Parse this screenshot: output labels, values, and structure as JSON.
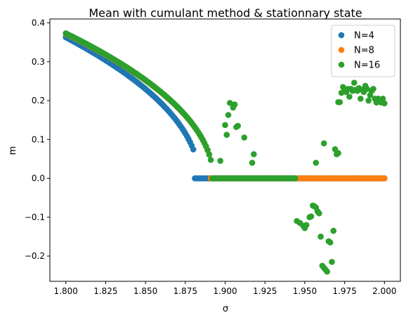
{
  "chart_data": {
    "type": "scatter",
    "title": "Mean with cumulant method & stationnary state",
    "xlabel": "σ",
    "ylabel": "m",
    "xlim": [
      1.79,
      2.01
    ],
    "ylim": [
      -0.265,
      0.41
    ],
    "xticks": [
      1.8,
      1.825,
      1.85,
      1.875,
      1.9,
      1.925,
      1.95,
      1.975,
      2.0
    ],
    "xtick_labels": [
      "1.800",
      "1.825",
      "1.850",
      "1.875",
      "1.900",
      "1.925",
      "1.950",
      "1.975",
      "2.000"
    ],
    "yticks": [
      -0.2,
      -0.1,
      0.0,
      0.1,
      0.2,
      0.3,
      0.4
    ],
    "ytick_labels": [
      "−0.2",
      "−0.1",
      "0.0",
      "0.1",
      "0.2",
      "0.3",
      "0.4"
    ],
    "grid": false,
    "legend": "top-right",
    "series": [
      {
        "name": "N=4",
        "color": "#1f77b4",
        "model": {
          "x_start": 1.8,
          "x_end": 2.0,
          "step": 0.001,
          "m0": 0.363,
          "sigma_c": 1.8835,
          "beta": 0.5,
          "cutoff": 1.881
        },
        "points": []
      },
      {
        "name": "N=8",
        "color": "#ff7f0e",
        "model": {
          "x_start": 1.8,
          "x_end": 2.0,
          "step": 0.001,
          "m0": 0.372,
          "sigma_c": 1.8925,
          "beta": 0.5,
          "cutoff": 1.891
        },
        "points": []
      },
      {
        "name": "N=16",
        "color": "#2ca02c",
        "model": {
          "x_start": 1.8,
          "x_end": 2.0,
          "step": 0.001,
          "m0": 0.373,
          "sigma_c": 1.8925,
          "beta": 0.5,
          "cutoff": 1.892
        },
        "zero_skip_ranges": [
          [
            1.945,
            1.972
          ],
          [
            1.972,
            2.001
          ]
        ],
        "points": [
          [
            1.897,
            0.045
          ],
          [
            1.9,
            0.137
          ],
          [
            1.901,
            0.112
          ],
          [
            1.902,
            0.163
          ],
          [
            1.903,
            0.194
          ],
          [
            1.905,
            0.182
          ],
          [
            1.906,
            0.19
          ],
          [
            1.907,
            0.132
          ],
          [
            1.908,
            0.135
          ],
          [
            1.912,
            0.105
          ],
          [
            1.917,
            0.04
          ],
          [
            1.918,
            0.062
          ],
          [
            1.945,
            -0.11
          ],
          [
            1.947,
            -0.115
          ],
          [
            1.949,
            -0.122
          ],
          [
            1.95,
            -0.128
          ],
          [
            1.951,
            -0.12
          ],
          [
            1.953,
            -0.1
          ],
          [
            1.954,
            -0.098
          ],
          [
            1.955,
            -0.07
          ],
          [
            1.956,
            -0.072
          ],
          [
            1.957,
            -0.075
          ],
          [
            1.958,
            -0.085
          ],
          [
            1.959,
            -0.09
          ],
          [
            1.96,
            -0.15
          ],
          [
            1.961,
            -0.225
          ],
          [
            1.962,
            -0.23
          ],
          [
            1.963,
            -0.235
          ],
          [
            1.964,
            -0.24
          ],
          [
            1.965,
            -0.162
          ],
          [
            1.966,
            -0.165
          ],
          [
            1.967,
            -0.215
          ],
          [
            1.968,
            -0.135
          ],
          [
            1.957,
            0.04
          ],
          [
            1.962,
            0.09
          ],
          [
            1.969,
            0.075
          ],
          [
            1.97,
            0.062
          ],
          [
            1.971,
            0.065
          ],
          [
            1.971,
            0.196
          ],
          [
            1.972,
            0.196
          ],
          [
            1.973,
            0.22
          ],
          [
            1.974,
            0.235
          ],
          [
            1.975,
            0.225
          ],
          [
            1.976,
            0.222
          ],
          [
            1.977,
            0.23
          ],
          [
            1.978,
            0.21
          ],
          [
            1.979,
            0.23
          ],
          [
            1.98,
            0.225
          ],
          [
            1.981,
            0.246
          ],
          [
            1.982,
            0.228
          ],
          [
            1.983,
            0.225
          ],
          [
            1.984,
            0.232
          ],
          [
            1.985,
            0.205
          ],
          [
            1.986,
            0.228
          ],
          [
            1.987,
            0.222
          ],
          [
            1.988,
            0.238
          ],
          [
            1.989,
            0.23
          ],
          [
            1.99,
            0.2
          ],
          [
            1.991,
            0.214
          ],
          [
            1.992,
            0.225
          ],
          [
            1.993,
            0.23
          ],
          [
            1.994,
            0.205
          ],
          [
            1.995,
            0.195
          ],
          [
            1.996,
            0.205
          ],
          [
            1.997,
            0.2
          ],
          [
            1.998,
            0.195
          ],
          [
            1.999,
            0.205
          ],
          [
            2.0,
            0.193
          ]
        ]
      }
    ]
  }
}
